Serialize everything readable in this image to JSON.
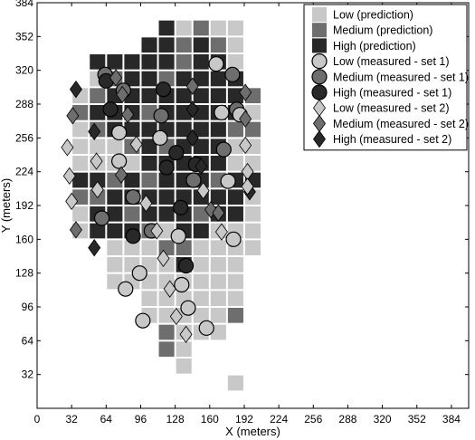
{
  "chart_data": {
    "type": "scatter",
    "xlabel": "X (meters)",
    "ylabel": "Y (meters)",
    "xlim": [
      0,
      400
    ],
    "ylim": [
      0,
      384
    ],
    "xticks": [
      0,
      32,
      64,
      96,
      128,
      160,
      192,
      224,
      256,
      288,
      320,
      352,
      384
    ],
    "yticks": [
      32,
      64,
      96,
      128,
      160,
      192,
      224,
      256,
      288,
      320,
      352,
      384
    ],
    "grid": false,
    "legend_position": "top-right",
    "cell_size": 16,
    "prediction_rows": [
      {
        "y": 24,
        "low": [
          184
        ],
        "medium": [],
        "high": []
      },
      {
        "y": 40,
        "low": [
          136
        ],
        "medium": [],
        "high": []
      },
      {
        "y": 56,
        "low": [
          136
        ],
        "medium": [
          120
        ],
        "high": []
      },
      {
        "y": 72,
        "low": [
          120,
          136,
          152,
          168
        ],
        "medium": [],
        "high": []
      },
      {
        "y": 88,
        "low": [
          104,
          120,
          136,
          152,
          168,
          184
        ],
        "medium": [],
        "high": []
      },
      {
        "y": 104,
        "low": [
          104,
          120,
          136,
          152,
          168,
          184
        ],
        "medium": [],
        "high": []
      },
      {
        "y": 120,
        "low": [
          72,
          88,
          104,
          120,
          136,
          152,
          168,
          184
        ],
        "medium": [],
        "high": []
      },
      {
        "y": 136,
        "low": [
          72,
          88,
          104,
          120,
          136,
          152,
          168,
          184
        ],
        "medium": [],
        "high": []
      },
      {
        "y": 152,
        "low": [
          72,
          88,
          104,
          120,
          136,
          152,
          168,
          184,
          200
        ],
        "medium": [],
        "high": []
      },
      {
        "y": 168,
        "low": [
          40,
          56,
          72,
          88,
          104,
          120,
          136,
          152,
          168,
          184,
          200
        ],
        "medium": [],
        "high": []
      },
      {
        "y": 184,
        "low": [
          40,
          56,
          72,
          88,
          104,
          120,
          136,
          152,
          168,
          184,
          200
        ],
        "medium": [],
        "high": []
      },
      {
        "y": 200,
        "low": [
          40,
          56,
          72,
          88,
          104,
          120,
          136,
          152,
          168,
          184,
          200
        ],
        "medium": [],
        "high": []
      },
      {
        "y": 216,
        "low": [
          40,
          56,
          72,
          88,
          104,
          120,
          136,
          152,
          168,
          184,
          200
        ],
        "medium": [],
        "high": []
      },
      {
        "y": 232,
        "low": [
          40,
          56,
          72,
          88,
          104,
          120,
          136,
          152,
          168,
          184,
          200
        ],
        "medium": [],
        "high": []
      },
      {
        "y": 248,
        "low": [
          40,
          56,
          72,
          88,
          104,
          120,
          136,
          152,
          168,
          184,
          200
        ],
        "medium": [],
        "high": []
      },
      {
        "y": 264,
        "low": [
          40,
          56,
          72,
          88,
          104,
          120,
          136,
          152,
          168,
          184,
          200
        ],
        "medium": [],
        "high": []
      },
      {
        "y": 280,
        "low": [
          40,
          56,
          72,
          88,
          104,
          120,
          136,
          152,
          168,
          184,
          200
        ],
        "medium": [],
        "high": []
      },
      {
        "y": 296,
        "low": [
          40,
          56,
          72,
          88,
          104,
          120,
          136,
          152,
          168,
          184,
          200
        ],
        "medium": [],
        "high": []
      },
      {
        "y": 312,
        "low": [
          56,
          72,
          88,
          104,
          120,
          136,
          152,
          168,
          184
        ],
        "medium": [],
        "high": []
      },
      {
        "y": 328,
        "low": [
          56,
          72,
          88,
          104,
          120,
          136,
          152,
          168,
          184
        ],
        "medium": [],
        "high": []
      },
      {
        "y": 344,
        "low": [
          120,
          136,
          152,
          168,
          184
        ],
        "medium": [],
        "high": []
      },
      {
        "y": 360,
        "low": [
          136,
          152,
          168,
          184
        ],
        "medium": [],
        "high": []
      }
    ],
    "prediction_overrides": {
      "medium": [
        [
          120,
          72
        ],
        [
          120,
          56
        ],
        [
          120,
          152
        ],
        [
          136,
          152
        ],
        [
          104,
          168
        ],
        [
          88,
          184
        ],
        [
          120,
          184
        ],
        [
          152,
          184
        ],
        [
          56,
          200
        ],
        [
          72,
          216
        ],
        [
          168,
          216
        ],
        [
          88,
          248
        ],
        [
          120,
          248
        ],
        [
          56,
          264
        ],
        [
          184,
          264
        ],
        [
          200,
          264
        ],
        [
          40,
          280
        ],
        [
          104,
          280
        ],
        [
          56,
          296
        ],
        [
          200,
          296
        ],
        [
          72,
          312
        ],
        [
          120,
          312
        ],
        [
          136,
          328
        ],
        [
          168,
          344
        ],
        [
          136,
          344
        ],
        [
          184,
          88
        ],
        [
          152,
          360
        ],
        [
          40,
          200
        ],
        [
          104,
          216
        ]
      ],
      "high": [
        [
          56,
          168
        ],
        [
          72,
          168
        ],
        [
          88,
          168
        ],
        [
          104,
          184
        ],
        [
          120,
          184
        ],
        [
          136,
          184
        ],
        [
          168,
          184
        ],
        [
          184,
          184
        ],
        [
          136,
          168
        ],
        [
          152,
          168
        ],
        [
          56,
          184
        ],
        [
          72,
          184
        ],
        [
          72,
          200
        ],
        [
          88,
          200
        ],
        [
          104,
          200
        ],
        [
          120,
          200
        ],
        [
          136,
          200
        ],
        [
          152,
          200
        ],
        [
          168,
          200
        ],
        [
          184,
          200
        ],
        [
          40,
          216
        ],
        [
          56,
          216
        ],
        [
          88,
          216
        ],
        [
          120,
          216
        ],
        [
          136,
          216
        ],
        [
          152,
          216
        ],
        [
          184,
          216
        ],
        [
          200,
          216
        ],
        [
          104,
          232
        ],
        [
          120,
          232
        ],
        [
          136,
          232
        ],
        [
          152,
          232
        ],
        [
          168,
          232
        ],
        [
          104,
          248
        ],
        [
          136,
          248
        ],
        [
          152,
          248
        ],
        [
          168,
          248
        ],
        [
          72,
          264
        ],
        [
          88,
          264
        ],
        [
          104,
          264
        ],
        [
          120,
          264
        ],
        [
          136,
          264
        ],
        [
          152,
          264
        ],
        [
          168,
          264
        ],
        [
          56,
          280
        ],
        [
          72,
          280
        ],
        [
          88,
          280
        ],
        [
          120,
          280
        ],
        [
          136,
          280
        ],
        [
          152,
          280
        ],
        [
          168,
          280
        ],
        [
          184,
          280
        ],
        [
          72,
          296
        ],
        [
          88,
          296
        ],
        [
          104,
          296
        ],
        [
          120,
          296
        ],
        [
          136,
          296
        ],
        [
          152,
          296
        ],
        [
          168,
          296
        ],
        [
          184,
          296
        ],
        [
          88,
          312
        ],
        [
          104,
          312
        ],
        [
          136,
          312
        ],
        [
          152,
          312
        ],
        [
          168,
          312
        ],
        [
          184,
          312
        ],
        [
          56,
          328
        ],
        [
          72,
          328
        ],
        [
          88,
          328
        ],
        [
          104,
          328
        ],
        [
          120,
          328
        ],
        [
          152,
          328
        ],
        [
          168,
          328
        ],
        [
          104,
          344
        ],
        [
          120,
          344
        ],
        [
          152,
          344
        ],
        [
          120,
          360
        ],
        [
          136,
          136
        ]
      ]
    },
    "measured_set1": [
      {
        "level": "low",
        "x": 166,
        "y": 326
      },
      {
        "level": "medium",
        "x": 181,
        "y": 316
      },
      {
        "level": "medium",
        "x": 63,
        "y": 316
      },
      {
        "level": "high",
        "x": 64,
        "y": 310
      },
      {
        "level": "medium",
        "x": 80,
        "y": 301
      },
      {
        "level": "high",
        "x": 117,
        "y": 302
      },
      {
        "level": "high",
        "x": 68,
        "y": 283
      },
      {
        "level": "low",
        "x": 171,
        "y": 280
      },
      {
        "level": "medium",
        "x": 115,
        "y": 277
      },
      {
        "level": "medium",
        "x": 185,
        "y": 283
      },
      {
        "level": "low",
        "x": 188,
        "y": 278
      },
      {
        "level": "low",
        "x": 76,
        "y": 261
      },
      {
        "level": "low",
        "x": 114,
        "y": 256
      },
      {
        "level": "medium",
        "x": 173,
        "y": 245
      },
      {
        "level": "low",
        "x": 76,
        "y": 234
      },
      {
        "level": "high",
        "x": 129,
        "y": 242
      },
      {
        "level": "high",
        "x": 147,
        "y": 231
      },
      {
        "level": "high",
        "x": 120,
        "y": 228
      },
      {
        "level": "low",
        "x": 177,
        "y": 215
      },
      {
        "level": "medium",
        "x": 145,
        "y": 216
      },
      {
        "level": "medium",
        "x": 89,
        "y": 200
      },
      {
        "level": "high",
        "x": 133,
        "y": 190
      },
      {
        "level": "medium",
        "x": 60,
        "y": 180
      },
      {
        "level": "high",
        "x": 89,
        "y": 163
      },
      {
        "level": "medium",
        "x": 106,
        "y": 168
      },
      {
        "level": "low",
        "x": 131,
        "y": 163
      },
      {
        "level": "low",
        "x": 182,
        "y": 160
      },
      {
        "level": "high",
        "x": 138,
        "y": 135
      },
      {
        "level": "low",
        "x": 95,
        "y": 128
      },
      {
        "level": "low",
        "x": 82,
        "y": 113
      },
      {
        "level": "low",
        "x": 134,
        "y": 117
      },
      {
        "level": "low",
        "x": 140,
        "y": 95
      },
      {
        "level": "low",
        "x": 157,
        "y": 76
      },
      {
        "level": "low",
        "x": 98,
        "y": 83
      }
    ],
    "measured_set2": [
      {
        "level": "high",
        "x": 36,
        "y": 302
      },
      {
        "level": "medium",
        "x": 73,
        "y": 313
      },
      {
        "level": "medium",
        "x": 79,
        "y": 297
      },
      {
        "level": "medium",
        "x": 193,
        "y": 299
      },
      {
        "level": "medium",
        "x": 144,
        "y": 305
      },
      {
        "level": "high",
        "x": 144,
        "y": 283
      },
      {
        "level": "medium",
        "x": 33,
        "y": 277
      },
      {
        "level": "medium",
        "x": 84,
        "y": 278
      },
      {
        "level": "high",
        "x": 53,
        "y": 262
      },
      {
        "level": "high",
        "x": 144,
        "y": 256
      },
      {
        "level": "medium",
        "x": 193,
        "y": 274
      },
      {
        "level": "low",
        "x": 28,
        "y": 247
      },
      {
        "level": "low",
        "x": 55,
        "y": 234
      },
      {
        "level": "low",
        "x": 92,
        "y": 250
      },
      {
        "level": "low",
        "x": 193,
        "y": 249
      },
      {
        "level": "low",
        "x": 30,
        "y": 220
      },
      {
        "level": "medium",
        "x": 78,
        "y": 221
      },
      {
        "level": "low",
        "x": 195,
        "y": 224
      },
      {
        "level": "high",
        "x": 152,
        "y": 229
      },
      {
        "level": "low",
        "x": 56,
        "y": 207
      },
      {
        "level": "low",
        "x": 32,
        "y": 196
      },
      {
        "level": "low",
        "x": 101,
        "y": 194
      },
      {
        "level": "low",
        "x": 154,
        "y": 206
      },
      {
        "level": "high",
        "x": 197,
        "y": 205
      },
      {
        "level": "medium",
        "x": 161,
        "y": 188
      },
      {
        "level": "medium",
        "x": 168,
        "y": 185
      },
      {
        "level": "low",
        "x": 195,
        "y": 210
      },
      {
        "level": "medium",
        "x": 36,
        "y": 169
      },
      {
        "level": "low",
        "x": 171,
        "y": 167
      },
      {
        "level": "high",
        "x": 53,
        "y": 152
      },
      {
        "level": "low",
        "x": 111,
        "y": 168
      },
      {
        "level": "low",
        "x": 117,
        "y": 142
      },
      {
        "level": "low",
        "x": 123,
        "y": 113
      },
      {
        "level": "low",
        "x": 129,
        "y": 87
      },
      {
        "level": "low",
        "x": 138,
        "y": 70
      }
    ],
    "legend": [
      {
        "label": "Low (prediction)",
        "marker": "square",
        "level": "low"
      },
      {
        "label": "Medium (prediction)",
        "marker": "square",
        "level": "medium"
      },
      {
        "label": "High (prediction)",
        "marker": "square",
        "level": "high"
      },
      {
        "label": "Low (measured - set 1)",
        "marker": "circle",
        "level": "low"
      },
      {
        "label": "Medium (measured - set 1)",
        "marker": "circle",
        "level": "medium"
      },
      {
        "label": "High (measured - set 1)",
        "marker": "circle",
        "level": "high"
      },
      {
        "label": "Low (measured - set 2)",
        "marker": "diamond",
        "level": "low"
      },
      {
        "label": "Medium (measured - set 2)",
        "marker": "diamond",
        "level": "medium"
      },
      {
        "label": "High (measured - set 2)",
        "marker": "diamond",
        "level": "high"
      }
    ],
    "colors": {
      "low": "#c8c8c8",
      "medium": "#6e6e6e",
      "high": "#282828"
    }
  }
}
